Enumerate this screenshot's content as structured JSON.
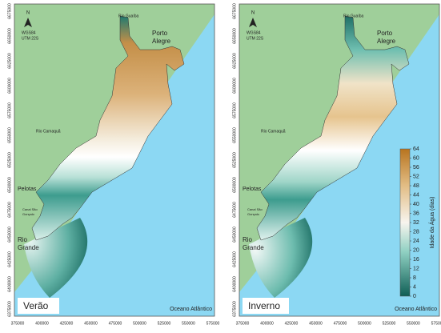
{
  "panels": [
    {
      "label": "Verão"
    },
    {
      "label": "Inverno"
    }
  ],
  "places": [
    "Rio Guaíba",
    [
      "Porto",
      "Alegre"
    ],
    "Rio Camaquã",
    "Pelotas",
    [
      "Canal São",
      "Gonçalo"
    ],
    [
      "Rio",
      "Grande"
    ],
    "Oceano Atlântico"
  ],
  "north": "N",
  "datum": [
    "WGS84",
    "UTM 22S"
  ],
  "x_axis_labels": [
    "375000",
    "400000",
    "425000",
    "450000",
    "475000",
    "500000",
    "525000",
    "550000",
    "575000"
  ],
  "y_axis_labels": [
    "6675000",
    "6650000",
    "6625000",
    "6600000",
    "6575000",
    "6550000",
    "6525000",
    "6500000",
    "6475000",
    "6450000",
    "6425000",
    "6400000",
    "6375000"
  ],
  "colorbar": {
    "title": "Idade da Água (dias)",
    "ticks": [
      0,
      4,
      8,
      12,
      16,
      20,
      24,
      28,
      32,
      36,
      40,
      44,
      48,
      52,
      56,
      60,
      64
    ]
  }
}
